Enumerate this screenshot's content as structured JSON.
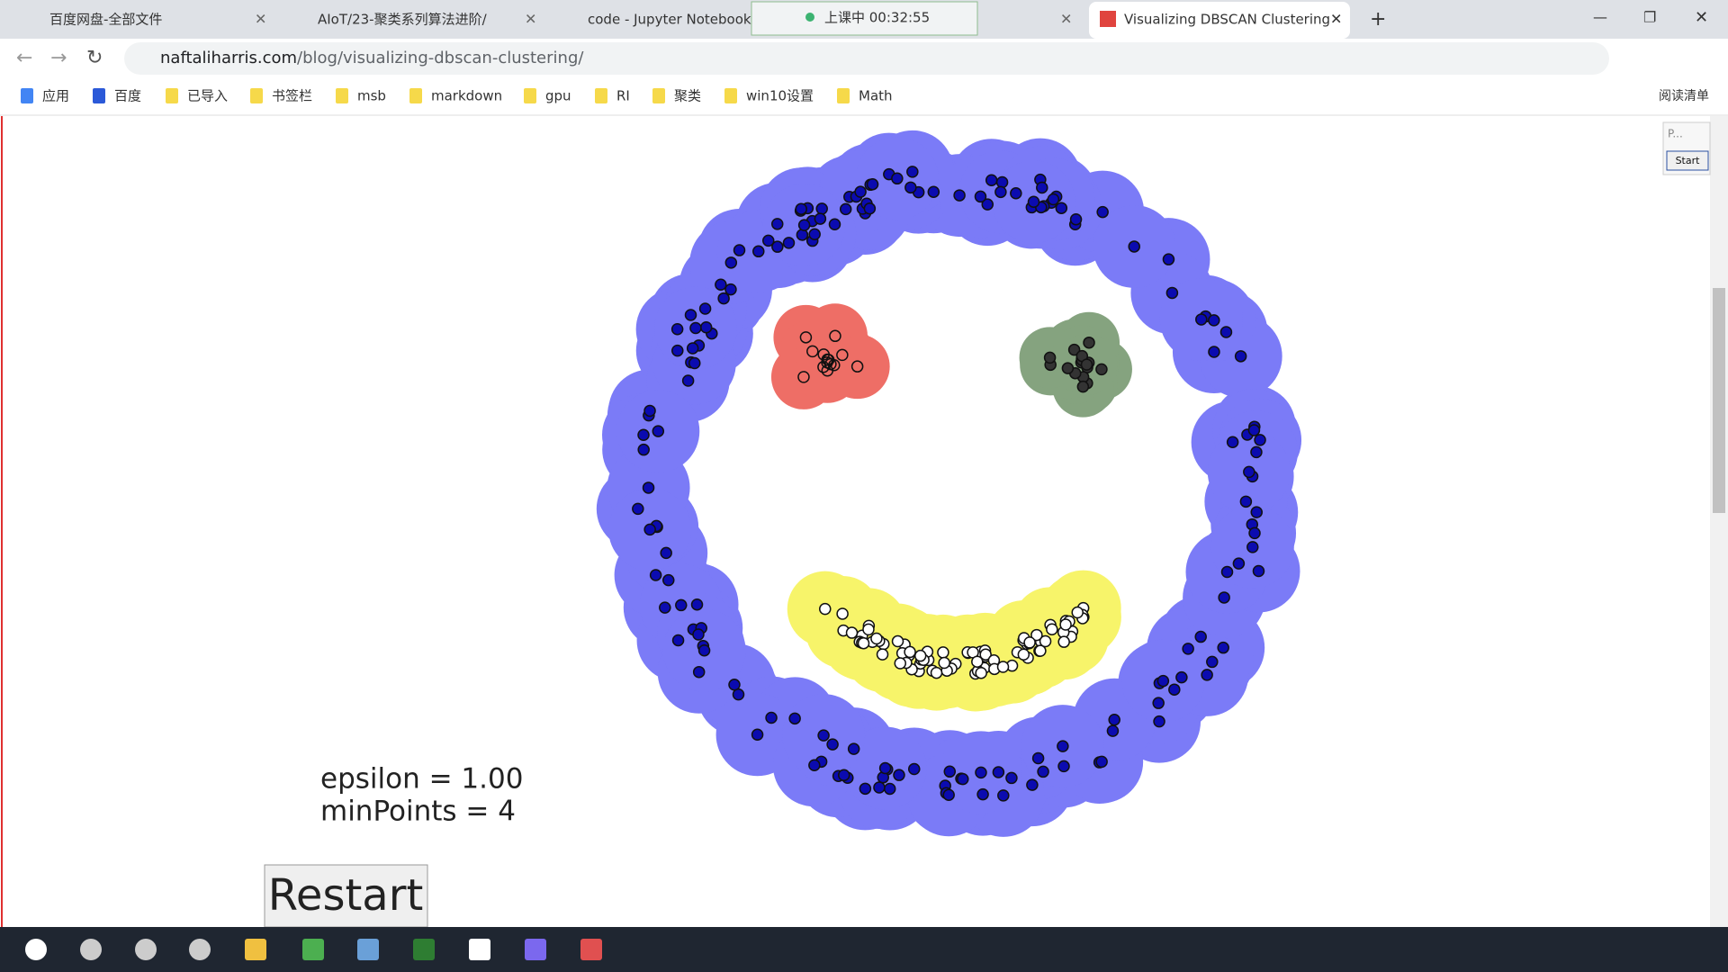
{
  "tabs": [
    "百度网盘-全部文件",
    "AIoT/23-聚类系列算法进阶/",
    "code - Jupyter Notebook",
    "Visualizing DBSCAN Clustering"
  ],
  "timer": "上课中 00:32:55",
  "address": {
    "domain": "naftaliharris.com",
    "path": "/blog/visualizing-dbscan-clustering/"
  },
  "bookmarks": [
    "应用",
    "百度",
    "已导入",
    "书签栏",
    "msb",
    "markdown",
    "gpu",
    "RI",
    "聚类",
    "win10设置",
    "Math"
  ],
  "reading_list": "阅读清单",
  "page": {
    "epsilon": "epsilon = 1.00",
    "min_points": "minPoints = 4",
    "restart": "Restart",
    "panel_label": "P...",
    "start": "Start"
  }
}
